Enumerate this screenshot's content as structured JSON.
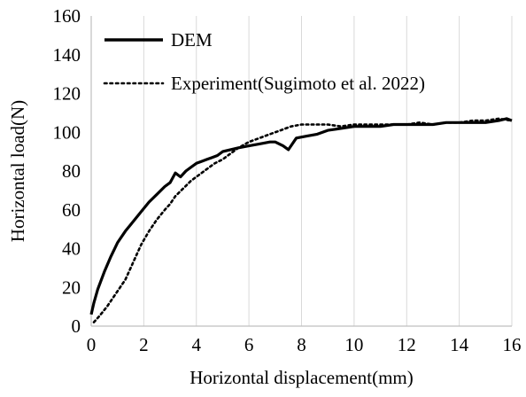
{
  "chart_data": {
    "type": "line",
    "title": "",
    "xlabel": "Horizontal displacement(mm)",
    "ylabel": "Horizontal load(N)",
    "xlim": [
      0,
      16
    ],
    "ylim": [
      0,
      160
    ],
    "xticks": [
      "0",
      "2",
      "4",
      "6",
      "8",
      "10",
      "12",
      "14",
      "16"
    ],
    "yticks": [
      "0",
      "20",
      "40",
      "60",
      "80",
      "100",
      "120",
      "140",
      "160"
    ],
    "grid": "vertical",
    "legend_position": "top-left",
    "series": [
      {
        "name": "DEM",
        "style": "solid",
        "color": "#000000",
        "points": [
          [
            0,
            6
          ],
          [
            0.1,
            12
          ],
          [
            0.25,
            19
          ],
          [
            0.5,
            28
          ],
          [
            0.75,
            36
          ],
          [
            1.0,
            43
          ],
          [
            1.3,
            49
          ],
          [
            1.6,
            54
          ],
          [
            1.9,
            59
          ],
          [
            2.2,
            64
          ],
          [
            2.5,
            68
          ],
          [
            2.8,
            72
          ],
          [
            3.0,
            74
          ],
          [
            3.2,
            79
          ],
          [
            3.4,
            77
          ],
          [
            3.6,
            80
          ],
          [
            3.8,
            82
          ],
          [
            4.0,
            84
          ],
          [
            4.2,
            85
          ],
          [
            4.4,
            86
          ],
          [
            4.6,
            87
          ],
          [
            4.8,
            88
          ],
          [
            5.0,
            90
          ],
          [
            5.3,
            91
          ],
          [
            5.6,
            92
          ],
          [
            6.0,
            93
          ],
          [
            6.4,
            94
          ],
          [
            6.8,
            95
          ],
          [
            7.0,
            95
          ],
          [
            7.3,
            93
          ],
          [
            7.5,
            91
          ],
          [
            7.8,
            97
          ],
          [
            8.2,
            98
          ],
          [
            8.6,
            99
          ],
          [
            9.0,
            101
          ],
          [
            9.5,
            102
          ],
          [
            10.0,
            103
          ],
          [
            10.5,
            103
          ],
          [
            11.0,
            103
          ],
          [
            11.5,
            104
          ],
          [
            12.0,
            104
          ],
          [
            12.5,
            104
          ],
          [
            13.0,
            104
          ],
          [
            13.5,
            105
          ],
          [
            14.0,
            105
          ],
          [
            14.5,
            105
          ],
          [
            15.0,
            105
          ],
          [
            15.5,
            106
          ],
          [
            15.8,
            107
          ],
          [
            16.0,
            106
          ]
        ]
      },
      {
        "name": "Experiment(Sugimoto et al. 2022)",
        "style": "dotted",
        "color": "#000000",
        "points": [
          [
            0.1,
            2
          ],
          [
            0.3,
            5
          ],
          [
            0.6,
            10
          ],
          [
            1.0,
            18
          ],
          [
            1.3,
            24
          ],
          [
            1.6,
            33
          ],
          [
            1.9,
            42
          ],
          [
            2.2,
            49
          ],
          [
            2.5,
            55
          ],
          [
            2.8,
            60
          ],
          [
            3.0,
            63
          ],
          [
            3.2,
            67
          ],
          [
            3.5,
            71
          ],
          [
            3.8,
            75
          ],
          [
            4.1,
            78
          ],
          [
            4.4,
            81
          ],
          [
            4.7,
            84
          ],
          [
            5.0,
            86
          ],
          [
            5.3,
            89
          ],
          [
            5.6,
            92
          ],
          [
            6.0,
            95
          ],
          [
            6.4,
            97
          ],
          [
            6.8,
            99
          ],
          [
            7.2,
            101
          ],
          [
            7.6,
            103
          ],
          [
            8.0,
            104
          ],
          [
            8.5,
            104
          ],
          [
            9.0,
            104
          ],
          [
            9.5,
            103
          ],
          [
            10.0,
            104
          ],
          [
            10.5,
            104
          ],
          [
            11.0,
            104
          ],
          [
            11.5,
            104
          ],
          [
            12.0,
            104
          ],
          [
            12.5,
            105
          ],
          [
            13.0,
            104
          ],
          [
            13.5,
            105
          ],
          [
            14.0,
            105
          ],
          [
            14.5,
            106
          ],
          [
            15.0,
            106
          ],
          [
            15.5,
            107
          ],
          [
            16.0,
            106
          ]
        ]
      }
    ]
  }
}
